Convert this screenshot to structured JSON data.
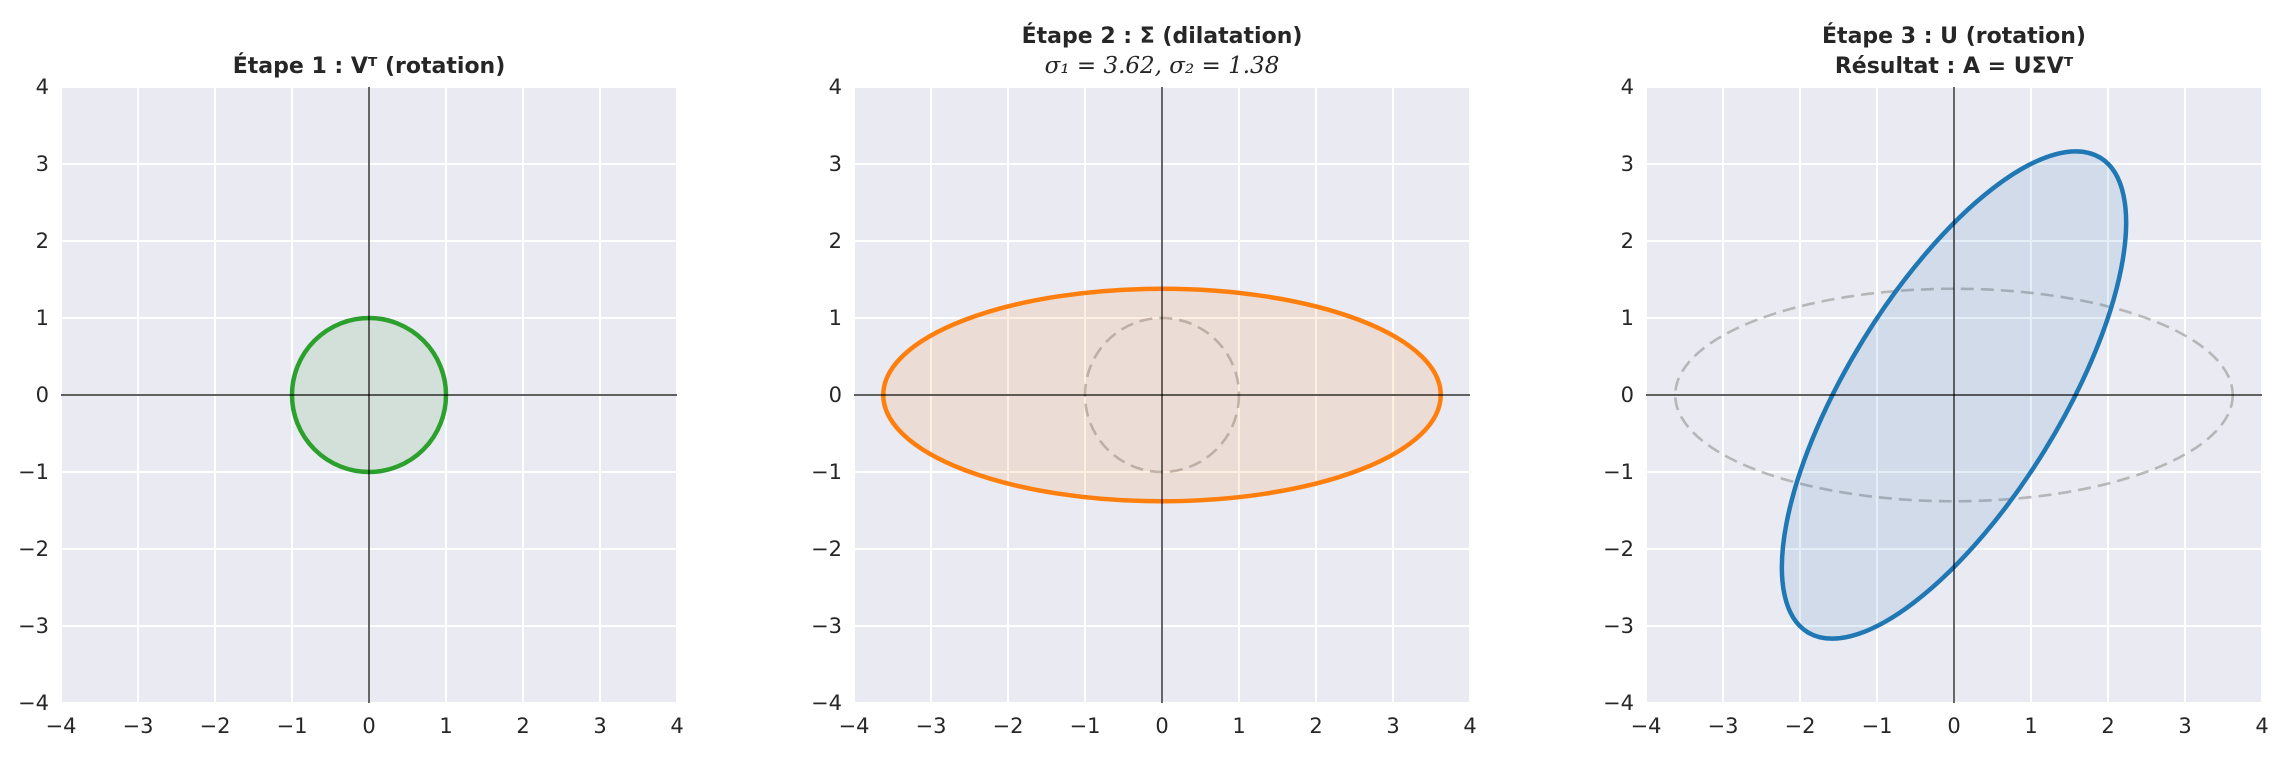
{
  "chart_data": [
    {
      "type": "line",
      "title": "Étape 1 : V^T (rotation)",
      "title_lines": [
        "Étape 1 : Vᵀ (rotation)"
      ],
      "xlim": [
        -4,
        4
      ],
      "ylim": [
        -4,
        4
      ],
      "x_ticks": [
        -4,
        -3,
        -2,
        -1,
        0,
        1,
        2,
        3,
        4
      ],
      "y_ticks": [
        -4,
        -3,
        -2,
        -1,
        0,
        1,
        2,
        3,
        4
      ],
      "x_tick_labels": [
        "−4",
        "−3",
        "−2",
        "−1",
        "0",
        "1",
        "2",
        "3",
        "4"
      ],
      "y_tick_labels": [
        "−4",
        "−3",
        "−2",
        "−1",
        "0",
        "1",
        "2",
        "3",
        "4"
      ],
      "grid": true,
      "series": [
        {
          "shape": "ellipse",
          "semi_axis_a": 1,
          "semi_axis_b": 1,
          "angle_deg": 0,
          "color": "#2ca02c",
          "style": "solid",
          "fill": true
        }
      ]
    },
    {
      "type": "line",
      "title": "Étape 2 : Σ (dilatation) — σ1 = 3.62, σ2 = 1.38",
      "title_lines": [
        "Étape 2 : Σ (dilatation)",
        "σ₁ = 3.62,  σ₂ = 1.38"
      ],
      "xlim": [
        -4,
        4
      ],
      "ylim": [
        -4,
        4
      ],
      "x_ticks": [
        -4,
        -3,
        -2,
        -1,
        0,
        1,
        2,
        3,
        4
      ],
      "y_ticks": [
        -4,
        -3,
        -2,
        -1,
        0,
        1,
        2,
        3,
        4
      ],
      "x_tick_labels": [
        "−4",
        "−3",
        "−2",
        "−1",
        "0",
        "1",
        "2",
        "3",
        "4"
      ],
      "y_tick_labels": [
        "−4",
        "−3",
        "−2",
        "−1",
        "0",
        "1",
        "2",
        "3",
        "4"
      ],
      "grid": true,
      "singular_values": [
        3.62,
        1.38
      ],
      "series": [
        {
          "shape": "ellipse",
          "semi_axis_a": 1,
          "semi_axis_b": 1,
          "angle_deg": 0,
          "color": "#999999",
          "style": "dashed",
          "fill": false
        },
        {
          "shape": "ellipse",
          "semi_axis_a": 3.62,
          "semi_axis_b": 1.38,
          "angle_deg": 0,
          "color": "#ff7f0e",
          "style": "solid",
          "fill": true
        }
      ]
    },
    {
      "type": "line",
      "title": "Étape 3 : U (rotation) — Résultat : A = UΣV^T",
      "title_lines": [
        "Étape 3 : U (rotation)",
        "Résultat : A = UΣVᵀ"
      ],
      "xlim": [
        -4,
        4
      ],
      "ylim": [
        -4,
        4
      ],
      "x_ticks": [
        -4,
        -3,
        -2,
        -1,
        0,
        1,
        2,
        3,
        4
      ],
      "y_ticks": [
        -4,
        -3,
        -2,
        -1,
        0,
        1,
        2,
        3,
        4
      ],
      "x_tick_labels": [
        "−4",
        "−3",
        "−2",
        "−1",
        "0",
        "1",
        "2",
        "3",
        "4"
      ],
      "y_tick_labels": [
        "−4",
        "−3",
        "−2",
        "−1",
        "0",
        "1",
        "2",
        "3",
        "4"
      ],
      "grid": true,
      "series": [
        {
          "shape": "ellipse",
          "semi_axis_a": 3.62,
          "semi_axis_b": 1.38,
          "angle_deg": 0,
          "color": "#999999",
          "style": "dashed",
          "fill": false
        },
        {
          "shape": "ellipse",
          "semi_axis_a": 3.62,
          "semi_axis_b": 1.38,
          "angle_deg": 58.3,
          "color": "#1f77b4",
          "style": "solid",
          "fill": true
        }
      ]
    }
  ]
}
